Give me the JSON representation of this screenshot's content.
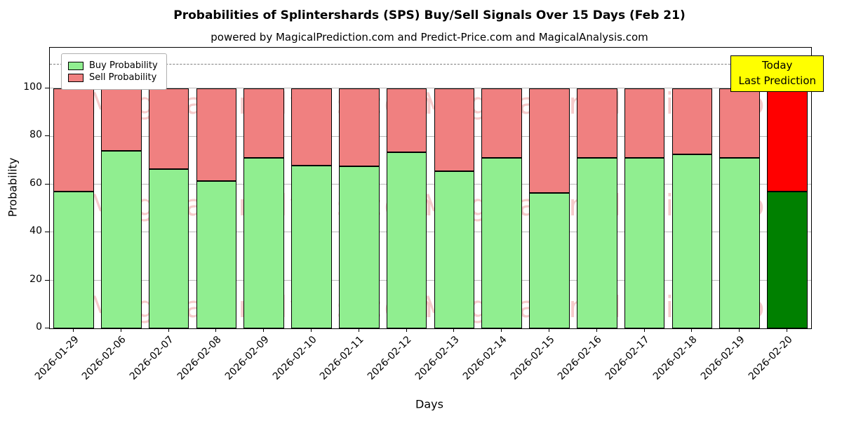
{
  "chart_data": {
    "type": "bar",
    "stacked": true,
    "title": "Probabilities of Splintershards (SPS) Buy/Sell Signals Over 15 Days (Feb 21)",
    "subtitle": "powered by MagicalPrediction.com and Predict-Price.com and MagicalAnalysis.com",
    "xlabel": "Days",
    "ylabel": "Probability",
    "ylim": [
      0,
      117
    ],
    "yticks": [
      0,
      20,
      40,
      60,
      80,
      100
    ],
    "dashed_line_y": 110,
    "grid": true,
    "legend_position": "upper left",
    "categories": [
      "2026-01-29",
      "2026-02-06",
      "2026-02-07",
      "2026-02-08",
      "2026-02-09",
      "2026-02-10",
      "2026-02-11",
      "2026-02-12",
      "2026-02-13",
      "2026-02-14",
      "2026-02-15",
      "2026-02-16",
      "2026-02-17",
      "2026-02-18",
      "2026-02-19",
      "2026-02-20"
    ],
    "series": [
      {
        "name": "Buy Probability",
        "values": [
          57,
          74,
          66.5,
          61.5,
          71,
          68,
          67.5,
          73.5,
          65.5,
          71,
          56.5,
          71,
          71,
          72.5,
          71,
          57
        ]
      },
      {
        "name": "Sell Probability",
        "values": [
          43,
          26,
          33.5,
          38.5,
          29,
          32,
          32.5,
          26.5,
          34.5,
          29,
          43.5,
          29,
          29,
          27.5,
          29,
          43
        ]
      }
    ],
    "colors": {
      "buy": "#90ee90",
      "sell": "#f08080",
      "today_buy": "#008000",
      "today_sell": "#ff0000",
      "edge": "#000000",
      "annotation_bg": "#ffff00"
    },
    "annotation": {
      "line1": "Today",
      "line2": "Last Prediction"
    },
    "watermarks": [
      "MagicalAnalysis.com",
      "MagicalPrediction.com"
    ]
  }
}
